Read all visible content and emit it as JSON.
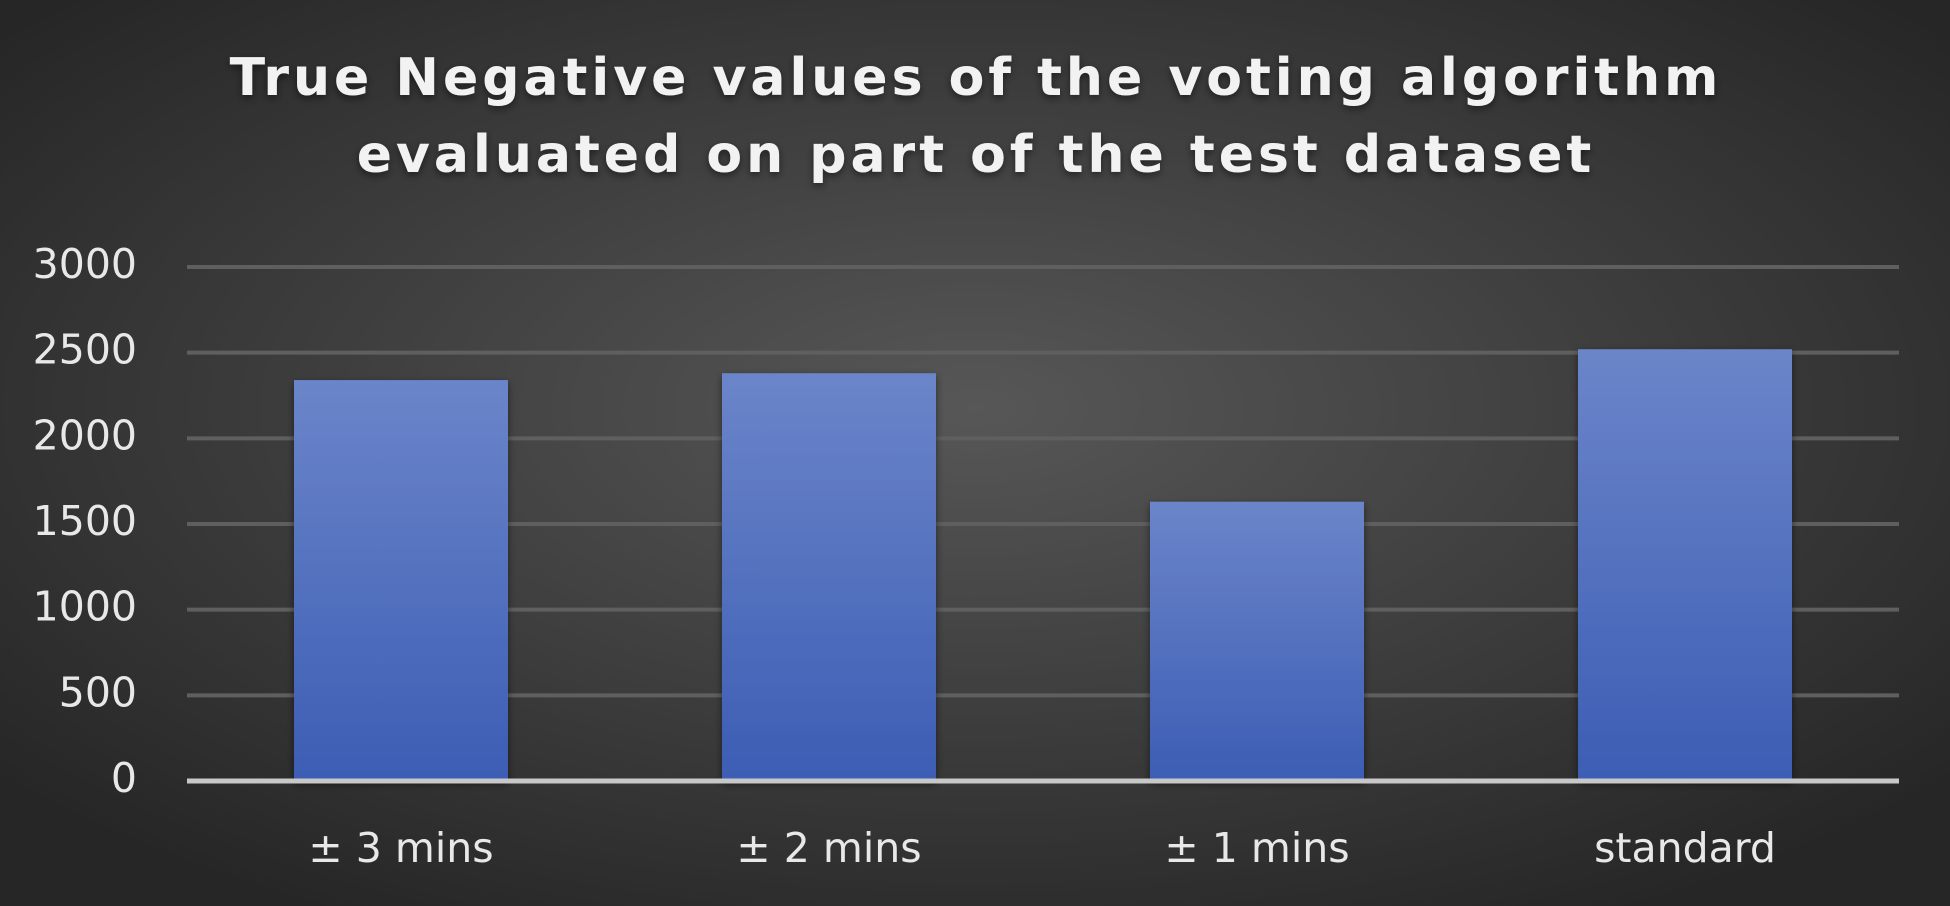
{
  "chart_data": {
    "type": "bar",
    "title": [
      "True Negative values of the voting algorithm",
      "evaluated on part of the test dataset"
    ],
    "categories": [
      "± 3 mins",
      "± 2 mins",
      "± 1 mins",
      "standard"
    ],
    "values": [
      2340,
      2380,
      1630,
      2520
    ],
    "color": "#4a6bc0",
    "ylim": [
      0,
      3000
    ],
    "yticks": [
      0,
      500,
      1000,
      1500,
      2000,
      2500,
      3000
    ],
    "grid": true
  }
}
